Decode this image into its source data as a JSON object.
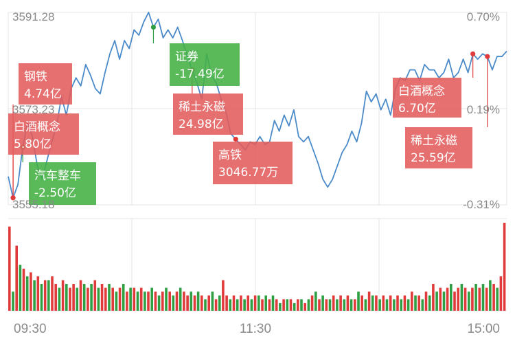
{
  "chart_data": {
    "type": "line",
    "y_left_labels": [
      "3591.28",
      "3573.23",
      "3555.18"
    ],
    "y_right_labels": [
      "0.70%",
      "0.19%",
      "-0.31%"
    ],
    "ylim": [
      3555.18,
      3591.28
    ],
    "x_labels": [
      "09:30",
      "11:30",
      "15:00"
    ],
    "grid": true,
    "colors": {
      "line": "#4a8ac9",
      "up": "#e03a3a",
      "down": "#2ea043",
      "up_box": "#e25b5b",
      "down_box": "#43b043",
      "grid": "#e6e6e6"
    },
    "price": [
      [
        0,
        3560.5
      ],
      [
        1,
        3556.5
      ],
      [
        2,
        3559.0
      ],
      [
        3,
        3566.0
      ],
      [
        4,
        3570.5
      ],
      [
        5,
        3568.0
      ],
      [
        6,
        3562.5
      ],
      [
        7,
        3560.0
      ],
      [
        8,
        3563.5
      ],
      [
        9,
        3567.0
      ],
      [
        10,
        3570.0
      ],
      [
        11,
        3575.5
      ],
      [
        12,
        3572.0
      ],
      [
        13,
        3577.0
      ],
      [
        14,
        3579.0
      ],
      [
        15,
        3577.5
      ],
      [
        16,
        3581.5
      ],
      [
        17,
        3579.5
      ],
      [
        18,
        3577.0
      ],
      [
        19,
        3576.0
      ],
      [
        20,
        3580.0
      ],
      [
        21,
        3583.5
      ],
      [
        22,
        3586.0
      ],
      [
        23,
        3582.5
      ],
      [
        24,
        3586.0
      ],
      [
        25,
        3584.5
      ],
      [
        26,
        3588.0
      ],
      [
        27,
        3587.0
      ],
      [
        28,
        3589.5
      ],
      [
        29,
        3591.28
      ],
      [
        30,
        3588.5
      ],
      [
        31,
        3590.0
      ],
      [
        32,
        3586.5
      ],
      [
        33,
        3588.0
      ],
      [
        34,
        3586.5
      ],
      [
        35,
        3588.5
      ],
      [
        36,
        3586.0
      ],
      [
        37,
        3583.0
      ],
      [
        38,
        3580.5
      ],
      [
        39,
        3578.0
      ],
      [
        40,
        3575.0
      ],
      [
        41,
        3583.5
      ],
      [
        42,
        3579.5
      ],
      [
        43,
        3578.0
      ],
      [
        44,
        3575.0
      ],
      [
        45,
        3572.5
      ],
      [
        46,
        3568.5
      ],
      [
        47,
        3567.5
      ],
      [
        48,
        3566.5
      ],
      [
        49,
        3565.5
      ],
      [
        50,
        3567.0
      ],
      [
        51,
        3566.5
      ],
      [
        52,
        3568.0
      ],
      [
        53,
        3566.5
      ],
      [
        54,
        3567.0
      ],
      [
        55,
        3571.0
      ],
      [
        56,
        3569.0
      ],
      [
        57,
        3572.0
      ],
      [
        58,
        3570.0
      ],
      [
        59,
        3573.0
      ],
      [
        60,
        3568.0
      ],
      [
        61,
        3567.0
      ],
      [
        62,
        3568.0
      ],
      [
        63,
        3565.5
      ],
      [
        64,
        3563.0
      ],
      [
        65,
        3560.0
      ],
      [
        66,
        3558.5
      ],
      [
        67,
        3560.0
      ],
      [
        68,
        3562.5
      ],
      [
        69,
        3565.0
      ],
      [
        70,
        3566.5
      ],
      [
        71,
        3569.0
      ],
      [
        72,
        3567.0
      ],
      [
        73,
        3570.5
      ],
      [
        74,
        3576.5
      ],
      [
        75,
        3574.5
      ],
      [
        76,
        3576.0
      ],
      [
        77,
        3573.0
      ],
      [
        78,
        3575.0
      ],
      [
        79,
        3572.0
      ],
      [
        80,
        3577.0
      ],
      [
        81,
        3579.0
      ],
      [
        82,
        3578.5
      ],
      [
        83,
        3580.5
      ],
      [
        84,
        3580.5
      ],
      [
        85,
        3578.5
      ],
      [
        86,
        3581.5
      ],
      [
        87,
        3580.5
      ],
      [
        88,
        3580.5
      ],
      [
        89,
        3579.0
      ],
      [
        90,
        3580.0
      ],
      [
        91,
        3582.5
      ],
      [
        92,
        3579.0
      ],
      [
        93,
        3580.0
      ],
      [
        94,
        3582.5
      ],
      [
        95,
        3580.0
      ],
      [
        96,
        3583.5
      ],
      [
        97,
        3582.5
      ],
      [
        98,
        3583.5
      ],
      [
        99,
        3583.0
      ],
      [
        100,
        3580.5
      ],
      [
        101,
        3583.0
      ],
      [
        102,
        3583.0
      ],
      [
        103,
        3584.0
      ]
    ],
    "volume": [
      [
        22,
        1
      ],
      [
        5,
        0
      ],
      [
        17,
        1
      ],
      [
        12,
        0
      ],
      [
        11,
        1
      ],
      [
        9,
        0
      ],
      [
        10,
        1
      ],
      [
        8,
        0
      ],
      [
        9,
        1
      ],
      [
        7,
        0
      ],
      [
        8,
        1
      ],
      [
        8,
        0
      ],
      [
        9,
        1
      ],
      [
        7,
        1
      ],
      [
        6,
        0
      ],
      [
        8,
        1
      ],
      [
        7,
        0
      ],
      [
        6,
        1
      ],
      [
        7,
        1
      ],
      [
        6,
        0
      ],
      [
        8,
        1
      ],
      [
        7,
        0
      ],
      [
        6,
        1
      ],
      [
        7,
        0
      ],
      [
        8,
        1
      ],
      [
        6,
        0
      ],
      [
        7,
        1
      ],
      [
        6,
        1
      ],
      [
        7,
        0
      ],
      [
        6,
        1
      ],
      [
        5,
        0
      ],
      [
        6,
        1
      ],
      [
        7,
        0
      ],
      [
        5,
        1
      ],
      [
        6,
        0
      ],
      [
        6,
        1
      ],
      [
        5,
        0
      ],
      [
        6,
        1
      ],
      [
        5,
        0
      ],
      [
        5,
        1
      ],
      [
        6,
        0
      ],
      [
        5,
        1
      ],
      [
        4,
        0
      ],
      [
        5,
        1
      ],
      [
        6,
        0
      ],
      [
        5,
        1
      ],
      [
        4,
        0
      ],
      [
        5,
        1
      ],
      [
        6,
        0
      ],
      [
        5,
        1
      ],
      [
        4,
        1
      ],
      [
        5,
        0
      ],
      [
        4,
        1
      ],
      [
        5,
        0
      ],
      [
        4,
        1
      ],
      [
        3,
        0
      ],
      [
        4,
        1
      ],
      [
        5,
        0
      ],
      [
        3,
        1
      ],
      [
        4,
        0
      ],
      [
        8,
        1
      ],
      [
        4,
        1
      ],
      [
        3,
        0
      ],
      [
        4,
        1
      ],
      [
        3,
        0
      ],
      [
        4,
        1
      ],
      [
        3,
        0
      ],
      [
        4,
        1
      ],
      [
        3,
        0
      ],
      [
        4,
        1
      ],
      [
        4,
        0
      ],
      [
        3,
        1
      ],
      [
        4,
        0
      ],
      [
        3,
        1
      ],
      [
        4,
        0
      ],
      [
        3,
        1
      ],
      [
        2,
        0
      ],
      [
        3,
        1
      ],
      [
        3,
        0
      ],
      [
        3,
        1
      ],
      [
        2,
        0
      ],
      [
        3,
        1
      ],
      [
        3,
        0
      ],
      [
        2,
        1
      ],
      [
        3,
        0
      ],
      [
        4,
        1
      ],
      [
        5,
        0
      ],
      [
        3,
        1
      ],
      [
        4,
        0
      ],
      [
        3,
        1
      ],
      [
        3,
        0
      ],
      [
        4,
        1
      ],
      [
        3,
        0
      ],
      [
        4,
        1
      ],
      [
        3,
        0
      ],
      [
        4,
        1
      ],
      [
        3,
        0
      ],
      [
        3,
        1
      ],
      [
        5,
        0
      ],
      [
        4,
        1
      ],
      [
        3,
        0
      ],
      [
        5,
        1
      ],
      [
        4,
        0
      ],
      [
        4,
        1
      ],
      [
        3,
        0
      ],
      [
        4,
        1
      ],
      [
        3,
        0
      ],
      [
        4,
        1
      ],
      [
        3,
        0
      ],
      [
        4,
        1
      ],
      [
        3,
        0
      ],
      [
        4,
        1
      ],
      [
        3,
        0
      ],
      [
        5,
        1
      ],
      [
        4,
        0
      ],
      [
        4,
        1
      ],
      [
        3,
        0
      ],
      [
        5,
        1
      ],
      [
        4,
        0
      ],
      [
        7,
        1
      ],
      [
        5,
        0
      ],
      [
        6,
        1
      ],
      [
        5,
        0
      ],
      [
        6,
        1
      ],
      [
        7,
        0
      ],
      [
        5,
        1
      ],
      [
        6,
        1
      ],
      [
        7,
        0
      ],
      [
        6,
        1
      ],
      [
        5,
        0
      ],
      [
        6,
        1
      ],
      [
        7,
        0
      ],
      [
        6,
        1
      ],
      [
        7,
        0
      ],
      [
        6,
        1
      ],
      [
        8,
        0
      ],
      [
        7,
        1
      ],
      [
        6,
        0
      ],
      [
        9,
        1
      ],
      [
        23,
        1
      ]
    ],
    "annotations": [
      {
        "name": "钢铁",
        "value": "4.74亿",
        "dir": "up",
        "at": 1
      },
      {
        "name": "白酒概念",
        "value": "5.80亿",
        "dir": "up",
        "at": 1
      },
      {
        "name": "汽车整车",
        "value": "-2.50亿",
        "dir": "down",
        "at": 3
      },
      {
        "name": "证券",
        "value": "-17.49亿",
        "dir": "down",
        "at": 30
      },
      {
        "name": "稀土永磁",
        "value": "24.98亿",
        "dir": "up",
        "at": 38
      },
      {
        "name": "高铁",
        "value": "3046.77万",
        "dir": "up",
        "at": 47
      },
      {
        "name": "白酒概念",
        "value": "6.70亿",
        "dir": "up",
        "at": 96
      },
      {
        "name": "稀土永磁",
        "value": "25.59亿",
        "dir": "up",
        "at": 99
      }
    ]
  }
}
